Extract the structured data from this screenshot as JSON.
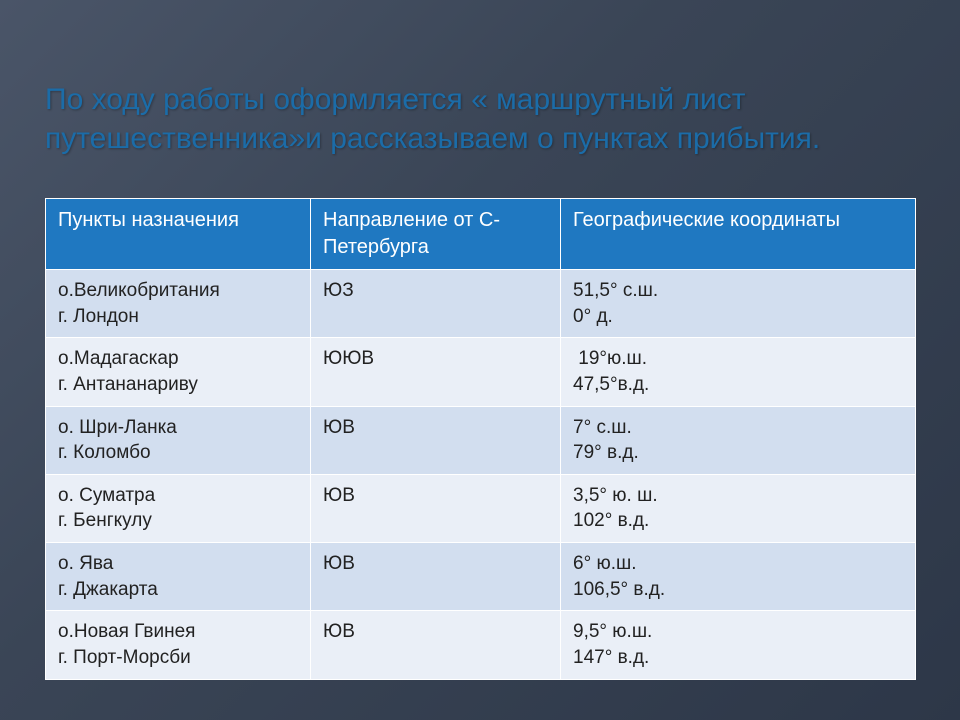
{
  "title": "По ходу работы оформляется «  маршрутный лист путешественника»и рассказываем о пунктах прибытия.",
  "table": {
    "type": "table",
    "header_bg": "#1f78c1",
    "header_color": "#ffffff",
    "row_odd_bg": "#d2deef",
    "row_even_bg": "#eaeff7",
    "border_color": "#ffffff",
    "columns": [
      "Пункты назначения",
      "Направление от С-Петербурга",
      "Географические координаты"
    ],
    "rows": [
      {
        "dest_l1": "о.Великобритания",
        "dest_l2": "г. Лондон",
        "dir": "ЮЗ",
        "coord_l1": "51,5° с.ш.",
        "coord_l2": "0° д."
      },
      {
        "dest_l1": "о.Мадагаскар",
        "dest_l2": "г. Антананариву",
        "dir": "ЮЮВ",
        "coord_l1": " 19°ю.ш.",
        "coord_l2": "47,5°в.д."
      },
      {
        "dest_l1": "о. Шри-Ланка",
        "dest_l2": "г. Коломбо",
        "dir": "ЮВ",
        "coord_l1": "7° с.ш.",
        "coord_l2": "79° в.д."
      },
      {
        "dest_l1": "о. Суматра",
        "dest_l2": "г. Бенгкулу",
        "dir": "ЮВ",
        "coord_l1": "3,5° ю. ш.",
        "coord_l2": "102° в.д."
      },
      {
        "dest_l1": "о. Ява",
        "dest_l2": "г. Джакарта",
        "dir": "ЮВ",
        "coord_l1": "6° ю.ш.",
        "coord_l2": "106,5° в.д."
      },
      {
        "dest_l1": "о.Новая Гвинея",
        "dest_l2": "г. Порт-Морсби",
        "dir": "ЮВ",
        "coord_l1": "9,5° ю.ш.",
        "coord_l2": "147° в.д."
      }
    ]
  }
}
